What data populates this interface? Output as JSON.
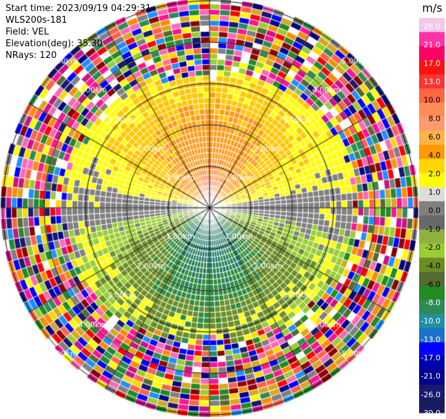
{
  "header": {
    "start_time": "Start time: 2023/09/19 04:29:31",
    "instrument": "WLS200s-181",
    "field": "Field: VEL",
    "elevation": "Elevation(deg): 35.30",
    "nrays": "NRays: 120"
  },
  "colorbar": {
    "unit": "m/s",
    "ticks": [
      "26.0",
      "21.0",
      "17.0",
      "13.0",
      "10.0",
      "8.0",
      "6.0",
      "4.0",
      "2.0",
      "1.0",
      "0.0",
      "-1.0",
      "-2.0",
      "-4.0",
      "-6.0",
      "-8.0",
      "-10.0",
      "-13.0",
      "-17.0",
      "-21.0",
      "-26.0",
      "-30.0"
    ],
    "colors": [
      "#f0c8e8",
      "#ff33a3",
      "#ff0066",
      "#ff1111",
      "#ff3333",
      "#ff6644",
      "#ff8c55",
      "#ff9a70",
      "#ffb347",
      "#ff9900",
      "#ffd700",
      "#ffff00",
      "#dddddd",
      "#808080",
      "#696969",
      "#8fb23f",
      "#9acd32",
      "#6b8e23",
      "#556b2f",
      "#228b22",
      "#2e8b57",
      "#1e90a0",
      "#1e6fcc",
      "#0000ff",
      "#0000aa",
      "#00008b",
      "#191970",
      "#1a1a5e"
    ]
  },
  "chart_data": {
    "type": "polar-ppi",
    "title": "",
    "field": "VEL",
    "units": "m/s",
    "n_rays": 120,
    "range_rings_km": [
      1.0,
      2.0,
      3.0,
      4.0,
      5.0
    ],
    "ring_labels": [
      "1.00km",
      "2.00km",
      "3.00km",
      "4.00km",
      "5.00km"
    ],
    "spoke_angles_deg": [
      0,
      30,
      60,
      90,
      120,
      150,
      180,
      210,
      240,
      270,
      300,
      330
    ],
    "vmin": -30.0,
    "vmax": 26.0,
    "signal_extent_north_km": 3.0,
    "signal_extent_south_km": 3.0,
    "velocity_pattern": [
      {
        "sector": "north",
        "range_km": [
          0,
          1.0
        ],
        "value": 10.0
      },
      {
        "sector": "north",
        "range_km": [
          1.0,
          2.0
        ],
        "value": 6.0
      },
      {
        "sector": "north",
        "range_km": [
          2.0,
          3.0
        ],
        "value": 2.0
      },
      {
        "sector": "south",
        "range_km": [
          0,
          1.0
        ],
        "value": -8.0
      },
      {
        "sector": "south",
        "range_km": [
          1.0,
          2.0
        ],
        "value": -6.0
      },
      {
        "sector": "south",
        "range_km": [
          2.0,
          3.0
        ],
        "value": -2.0
      }
    ]
  }
}
